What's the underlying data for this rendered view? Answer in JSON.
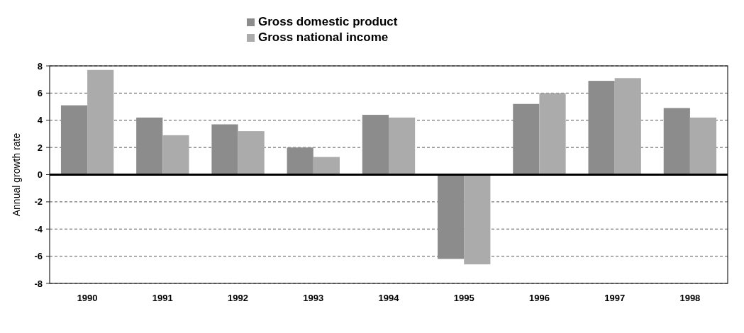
{
  "chart_data": {
    "type": "bar",
    "ylabel": "Annual growth rate",
    "categories": [
      "1990",
      "1991",
      "1992",
      "1993",
      "1994",
      "1995",
      "1996",
      "1997",
      "1998"
    ],
    "series": [
      {
        "name": "Gross domestic product",
        "color": "#8c8c8c",
        "values": [
          5.1,
          4.2,
          3.7,
          2.0,
          4.4,
          -6.2,
          5.2,
          6.9,
          4.9
        ]
      },
      {
        "name": "Gross national income",
        "color": "#ababab",
        "values": [
          7.7,
          2.9,
          3.2,
          1.3,
          4.2,
          -6.6,
          6.0,
          7.1,
          4.2
        ]
      }
    ],
    "ylim": [
      -8,
      8
    ],
    "yticks": [
      -8,
      -6,
      -4,
      -2,
      0,
      2,
      4,
      6,
      8
    ],
    "grid": "y",
    "legend": "top"
  }
}
